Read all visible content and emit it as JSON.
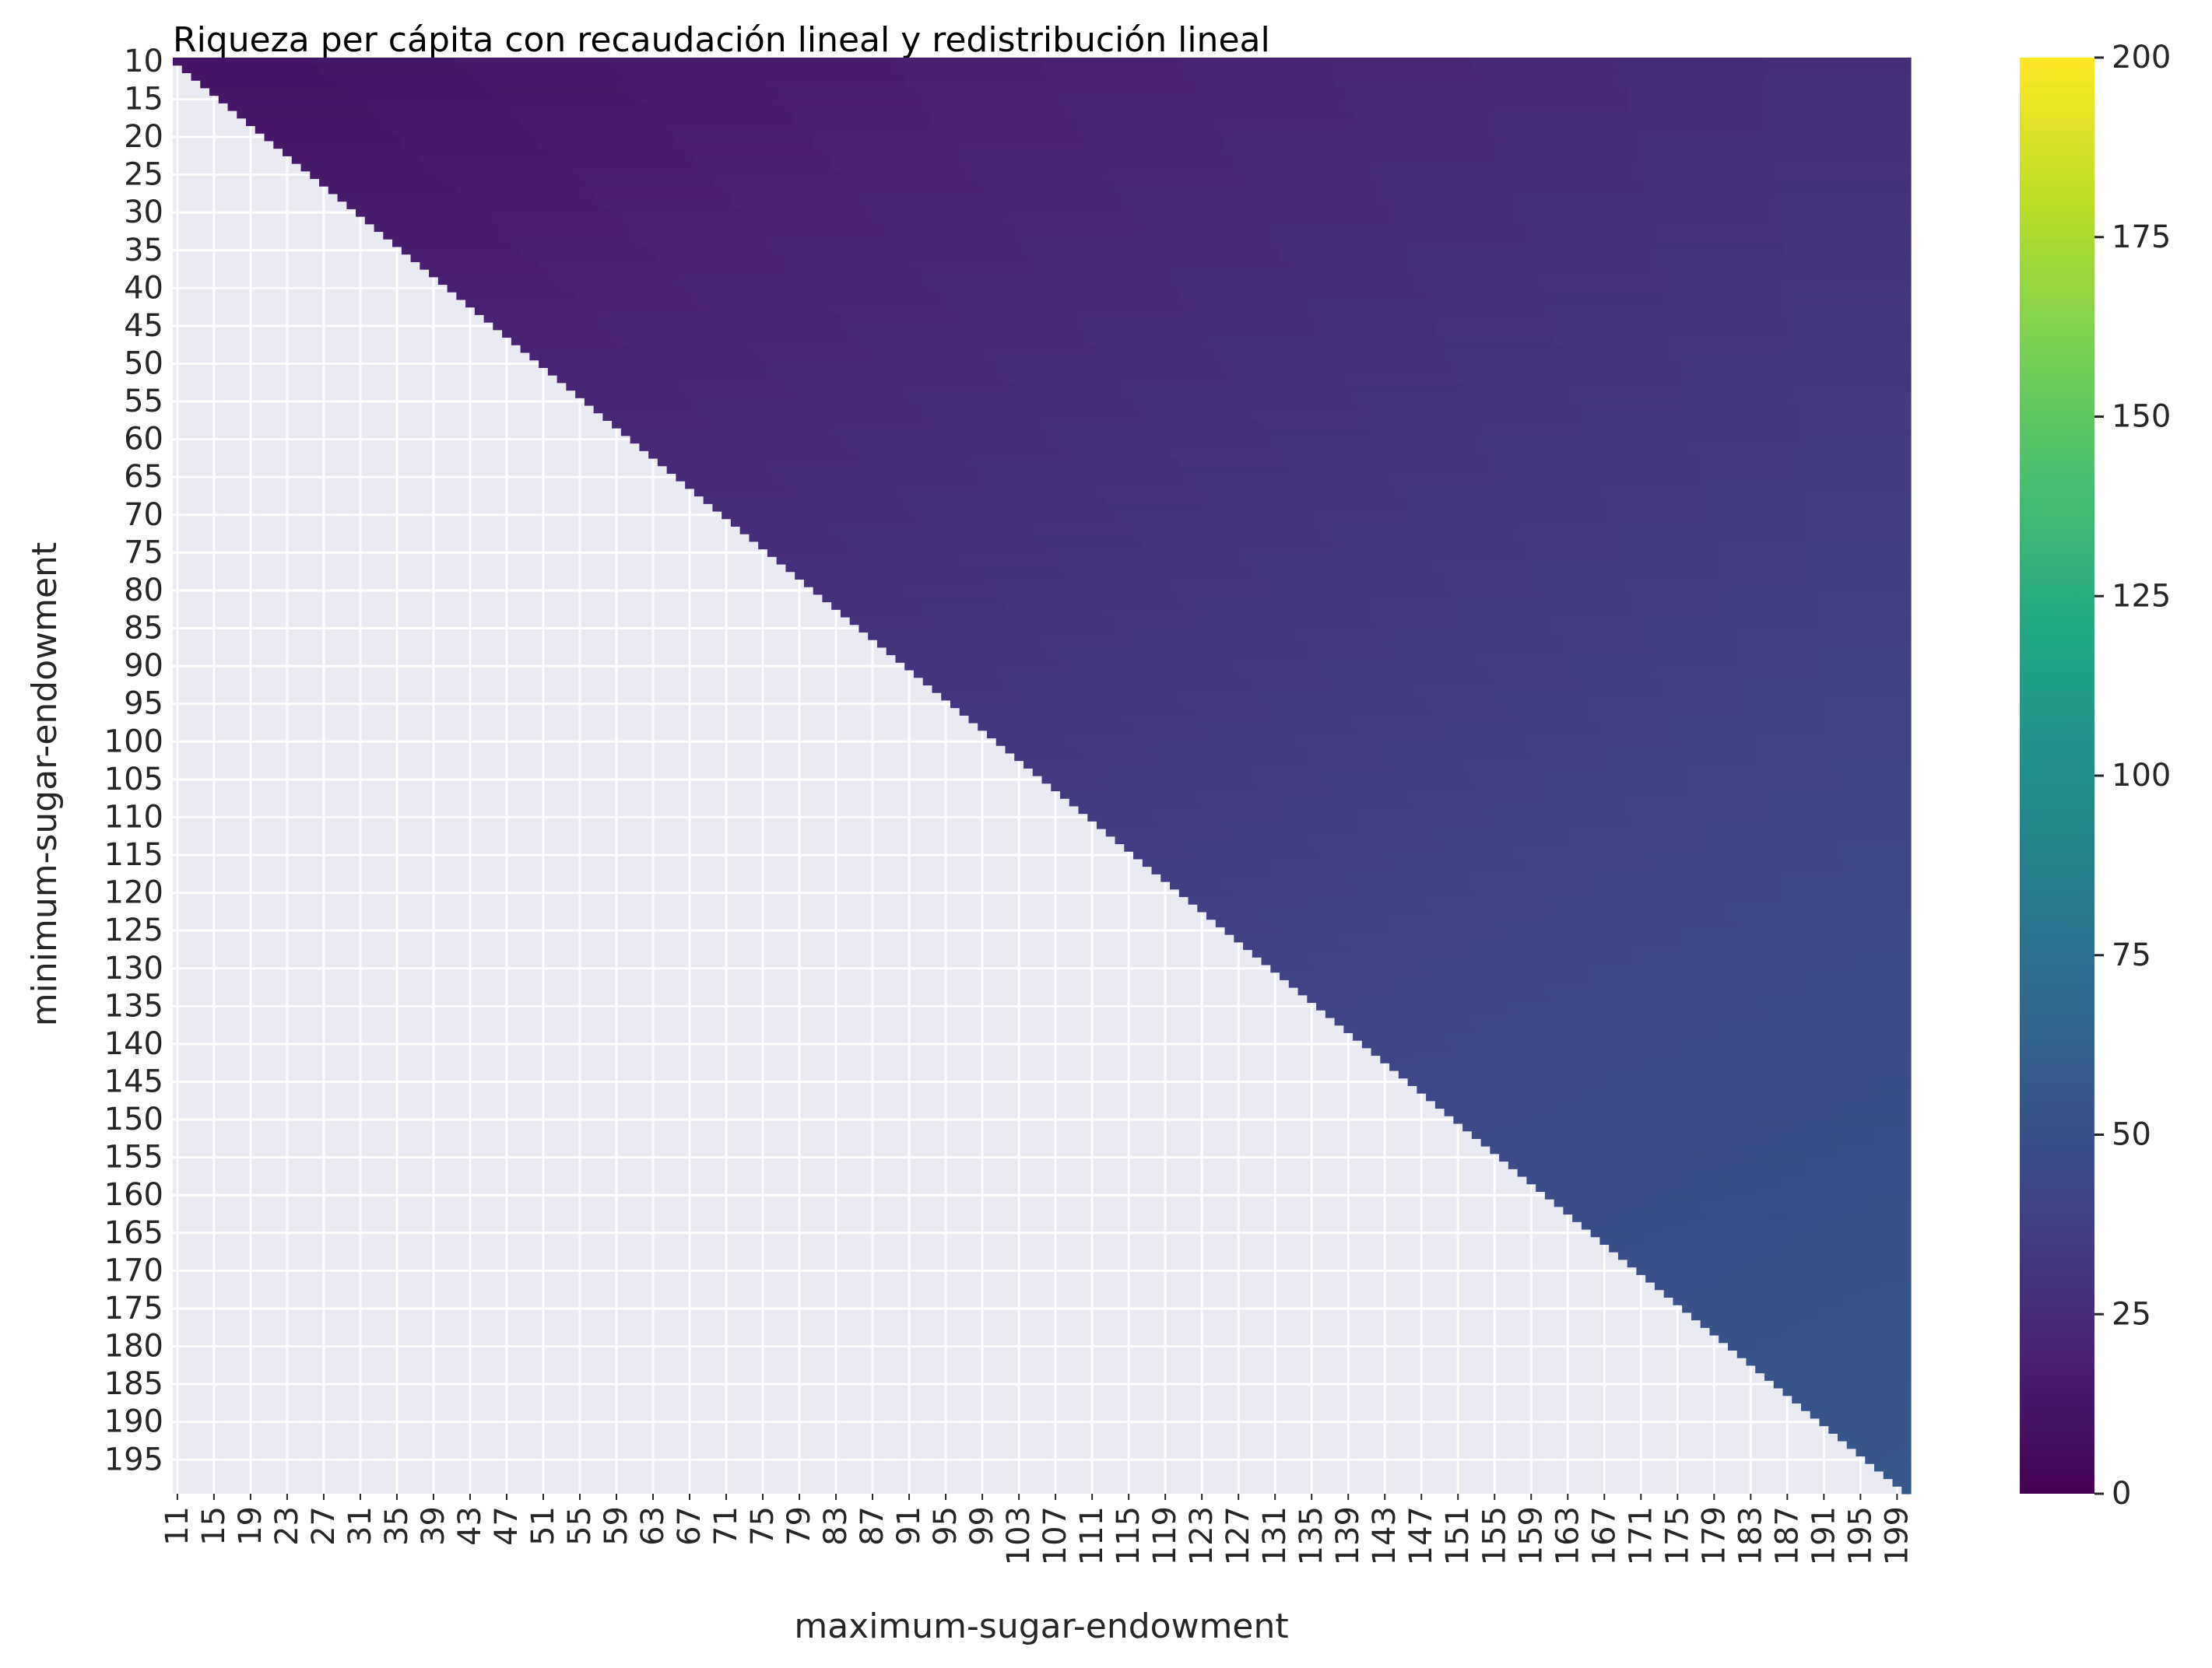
{
  "chart_data": {
    "type": "heatmap",
    "title": "Riqueza per cápita con recaudación lineal y redistribución lineal",
    "xlabel": "maximum-sugar-endowment",
    "ylabel": "minimum-sugar-endowment",
    "colormap": "viridis",
    "colorbar": {
      "min": 0,
      "max": 200,
      "ticks": [
        0,
        25,
        50,
        75,
        100,
        125,
        150,
        175,
        200
      ]
    },
    "x_range": [
      11,
      200
    ],
    "x_ticks": [
      11,
      15,
      19,
      23,
      27,
      31,
      35,
      39,
      43,
      47,
      51,
      55,
      59,
      63,
      67,
      71,
      75,
      79,
      83,
      87,
      91,
      95,
      99,
      103,
      107,
      111,
      115,
      119,
      123,
      127,
      131,
      135,
      139,
      143,
      147,
      151,
      155,
      159,
      163,
      167,
      171,
      175,
      179,
      183,
      187,
      191,
      195,
      199
    ],
    "y_range": [
      10,
      199
    ],
    "y_ticks": [
      10,
      15,
      20,
      25,
      30,
      35,
      40,
      45,
      50,
      55,
      60,
      65,
      70,
      75,
      80,
      85,
      90,
      95,
      100,
      105,
      110,
      115,
      120,
      125,
      130,
      135,
      140,
      145,
      150,
      155,
      160,
      165,
      170,
      175,
      180,
      185,
      190,
      195
    ],
    "missing_rule": "cells where maximum-sugar-endowment <= minimum-sugar-endowment are empty",
    "missing_color": "#eaeaf2",
    "corner_values": {
      "min10_max11": 10.5,
      "min10_max200": 27,
      "min199_max200": 56
    },
    "grid": true
  }
}
